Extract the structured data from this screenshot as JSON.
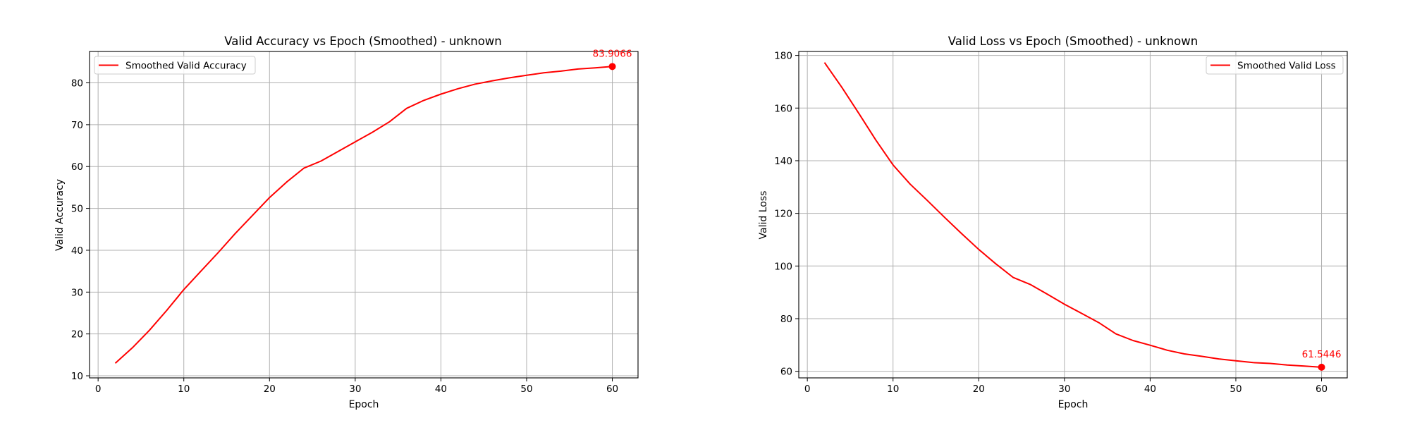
{
  "colors": {
    "series": "#ff0000",
    "grid": "#b0b0b0",
    "axes": "#000000",
    "background": "#ffffff",
    "legend_border": "#cccccc"
  },
  "chart_data": [
    {
      "type": "line",
      "title": "Valid Accuracy vs Epoch (Smoothed) - unknown",
      "xlabel": "Epoch",
      "ylabel": "Valid Accuracy",
      "xlim": [
        -1,
        63
      ],
      "ylim": [
        9.5,
        87.5
      ],
      "xticks": [
        0,
        10,
        20,
        30,
        40,
        50,
        60
      ],
      "yticks": [
        10,
        20,
        30,
        40,
        50,
        60,
        70,
        80
      ],
      "grid": true,
      "legend_position": "upper-left",
      "series": [
        {
          "name": "Smoothed Valid Accuracy",
          "color": "#ff0000",
          "x": [
            2,
            4,
            6,
            8,
            10,
            12,
            14,
            16,
            18,
            20,
            22,
            24,
            26,
            28,
            30,
            32,
            34,
            36,
            38,
            40,
            42,
            44,
            46,
            48,
            50,
            52,
            54,
            56,
            58,
            60
          ],
          "y": [
            13.0,
            16.7,
            20.9,
            25.6,
            30.6,
            35.0,
            39.4,
            44.0,
            48.3,
            52.6,
            56.3,
            59.6,
            61.3,
            63.6,
            65.9,
            68.2,
            70.7,
            73.9,
            75.8,
            77.3,
            78.6,
            79.7,
            80.5,
            81.2,
            81.8,
            82.4,
            82.8,
            83.3,
            83.6,
            83.9066
          ]
        }
      ],
      "annotation": {
        "x": 60,
        "y": 83.9066,
        "label": "83.9066"
      }
    },
    {
      "type": "line",
      "title": "Valid Loss vs Epoch (Smoothed) - unknown",
      "xlabel": "Epoch",
      "ylabel": "Valid Loss",
      "xlim": [
        -1,
        63
      ],
      "ylim": [
        57.5,
        181.5
      ],
      "xticks": [
        0,
        10,
        20,
        30,
        40,
        50,
        60
      ],
      "yticks": [
        60,
        80,
        100,
        120,
        140,
        160,
        180
      ],
      "grid": true,
      "legend_position": "upper-right",
      "series": [
        {
          "name": "Smoothed Valid Loss",
          "color": "#ff0000",
          "x": [
            2,
            4,
            6,
            8,
            10,
            12,
            14,
            16,
            18,
            20,
            22,
            24,
            26,
            28,
            30,
            32,
            34,
            36,
            38,
            40,
            42,
            44,
            46,
            48,
            50,
            52,
            54,
            56,
            58,
            60
          ],
          "y": [
            177.3,
            168.0,
            158.0,
            147.8,
            138.4,
            131.1,
            124.9,
            118.5,
            112.3,
            106.3,
            100.8,
            95.7,
            93.0,
            89.3,
            85.5,
            82.0,
            78.5,
            74.2,
            71.7,
            69.9,
            68.0,
            66.6,
            65.7,
            64.7,
            64.0,
            63.3,
            63.0,
            62.4,
            62.0,
            61.5446
          ]
        }
      ],
      "annotation": {
        "x": 60,
        "y": 61.5446,
        "label": "61.5446"
      }
    }
  ]
}
